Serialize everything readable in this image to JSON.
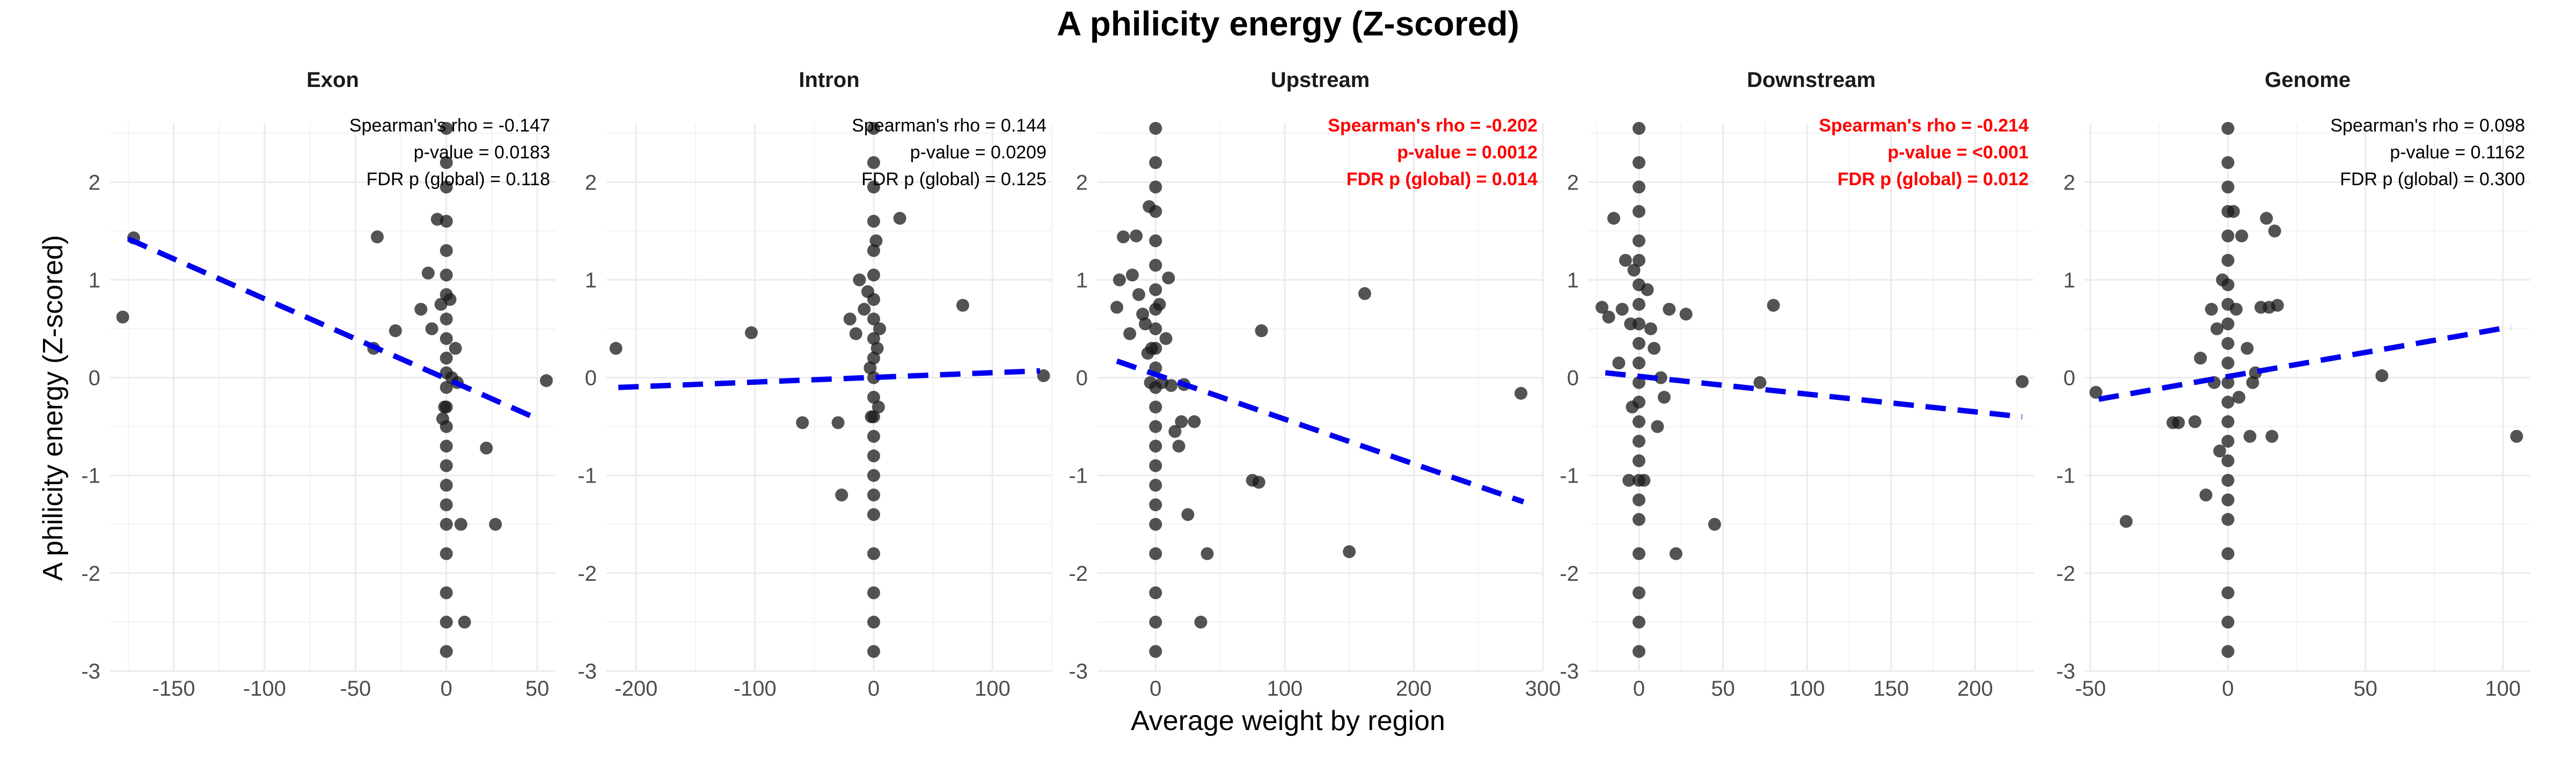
{
  "chart_data": {
    "type": "scatter",
    "title": "A philicity energy (Z-scored)",
    "xlabel": "Average weight by region",
    "ylabel": "A philicity energy (Z-scored)",
    "ylim": [
      -3,
      2.6
    ],
    "yticks": [
      -3,
      -2,
      -1,
      0,
      1,
      2
    ],
    "colors": {
      "points": "#1a1a1a",
      "fit_line": "#0000ee",
      "significant": "#ff0000",
      "normal": "#000000",
      "grid": "#ebebeb"
    },
    "panels": [
      {
        "name": "Exon",
        "xlim": [
          -185,
          60
        ],
        "xticks": [
          -150,
          -100,
          -50,
          0,
          50
        ],
        "annotation": [
          "Spearman's rho = -0.147",
          "p-value = 0.0183",
          "FDR p (global) = 0.118"
        ],
        "significant": false,
        "fit": [
          [
            -175,
            1.42
          ],
          [
            50,
            -0.42
          ]
        ],
        "points": [
          [
            -178,
            0.62
          ],
          [
            -172,
            1.43
          ],
          [
            -38,
            1.44
          ],
          [
            -40,
            0.3
          ],
          [
            -28,
            0.48
          ],
          [
            -14,
            0.7
          ],
          [
            -10,
            1.07
          ],
          [
            -8,
            0.5
          ],
          [
            -5,
            1.62
          ],
          [
            -3,
            0.75
          ],
          [
            -2,
            -0.42
          ],
          [
            -1,
            -0.3
          ],
          [
            0,
            2.55
          ],
          [
            0,
            2.2
          ],
          [
            0,
            1.95
          ],
          [
            0,
            1.6
          ],
          [
            0,
            1.3
          ],
          [
            0,
            1.05
          ],
          [
            0,
            0.85
          ],
          [
            0,
            0.6
          ],
          [
            0,
            0.4
          ],
          [
            0,
            0.2
          ],
          [
            0,
            0.05
          ],
          [
            0,
            -0.1
          ],
          [
            0,
            -0.3
          ],
          [
            0,
            -0.5
          ],
          [
            0,
            -0.7
          ],
          [
            0,
            -0.9
          ],
          [
            0,
            -1.1
          ],
          [
            0,
            -1.3
          ],
          [
            0,
            -1.5
          ],
          [
            0,
            -1.8
          ],
          [
            0,
            -2.2
          ],
          [
            0,
            -2.5
          ],
          [
            0,
            -2.8
          ],
          [
            2,
            0.8
          ],
          [
            3,
            0.0
          ],
          [
            5,
            0.3
          ],
          [
            6,
            -0.05
          ],
          [
            8,
            -1.5
          ],
          [
            10,
            -2.5
          ],
          [
            22,
            -0.72
          ],
          [
            27,
            -1.5
          ],
          [
            55,
            -0.03
          ]
        ]
      },
      {
        "name": "Intron",
        "xlim": [
          -225,
          150
        ],
        "xticks": [
          -200,
          -100,
          0,
          100
        ],
        "annotation": [
          "Spearman's rho = 0.144",
          "p-value = 0.0209",
          "FDR p (global) = 0.125"
        ],
        "significant": false,
        "fit": [
          [
            -215,
            -0.1
          ],
          [
            140,
            0.07
          ]
        ],
        "points": [
          [
            -217,
            0.3
          ],
          [
            -103,
            0.46
          ],
          [
            -60,
            -0.46
          ],
          [
            -30,
            -0.46
          ],
          [
            -27,
            -1.2
          ],
          [
            -20,
            0.6
          ],
          [
            -15,
            0.45
          ],
          [
            -12,
            1.0
          ],
          [
            -8,
            0.7
          ],
          [
            -5,
            0.88
          ],
          [
            -3,
            0.1
          ],
          [
            -2,
            -0.4
          ],
          [
            0,
            2.55
          ],
          [
            0,
            2.2
          ],
          [
            0,
            1.95
          ],
          [
            0,
            1.6
          ],
          [
            0,
            1.3
          ],
          [
            0,
            1.05
          ],
          [
            0,
            0.8
          ],
          [
            0,
            0.6
          ],
          [
            0,
            0.4
          ],
          [
            0,
            0.2
          ],
          [
            0,
            0.0
          ],
          [
            0,
            -0.2
          ],
          [
            0,
            -0.4
          ],
          [
            0,
            -0.6
          ],
          [
            0,
            -0.8
          ],
          [
            0,
            -1.0
          ],
          [
            0,
            -1.2
          ],
          [
            0,
            -1.4
          ],
          [
            0,
            -1.8
          ],
          [
            0,
            -2.2
          ],
          [
            0,
            -2.5
          ],
          [
            0,
            -2.8
          ],
          [
            2,
            1.4
          ],
          [
            3,
            0.3
          ],
          [
            4,
            -0.3
          ],
          [
            5,
            0.5
          ],
          [
            22,
            1.63
          ],
          [
            75,
            0.74
          ],
          [
            143,
            0.02
          ]
        ]
      },
      {
        "name": "Upstream",
        "xlim": [
          -45,
          300
        ],
        "xticks": [
          0,
          100,
          200,
          300
        ],
        "annotation": [
          "Spearman's rho = -0.202",
          "p-value = 0.0012",
          "FDR p (global) = 0.014"
        ],
        "significant": true,
        "fit": [
          [
            -30,
            0.17
          ],
          [
            285,
            -1.27
          ]
        ],
        "points": [
          [
            -30,
            0.72
          ],
          [
            -28,
            1.0
          ],
          [
            -25,
            1.44
          ],
          [
            -20,
            0.45
          ],
          [
            -18,
            1.05
          ],
          [
            -15,
            1.45
          ],
          [
            -13,
            0.85
          ],
          [
            -10,
            0.65
          ],
          [
            -8,
            0.55
          ],
          [
            -6,
            0.25
          ],
          [
            -5,
            1.75
          ],
          [
            -4,
            -0.05
          ],
          [
            -3,
            0.3
          ],
          [
            0,
            2.55
          ],
          [
            0,
            2.2
          ],
          [
            0,
            1.95
          ],
          [
            0,
            1.7
          ],
          [
            0,
            1.4
          ],
          [
            0,
            1.15
          ],
          [
            0,
            0.9
          ],
          [
            0,
            0.7
          ],
          [
            0,
            0.5
          ],
          [
            0,
            0.3
          ],
          [
            0,
            0.1
          ],
          [
            0,
            -0.1
          ],
          [
            0,
            -0.3
          ],
          [
            0,
            -0.5
          ],
          [
            0,
            -0.7
          ],
          [
            0,
            -0.9
          ],
          [
            0,
            -1.1
          ],
          [
            0,
            -1.3
          ],
          [
            0,
            -1.5
          ],
          [
            0,
            -1.8
          ],
          [
            0,
            -2.2
          ],
          [
            0,
            -2.5
          ],
          [
            0,
            -2.8
          ],
          [
            3,
            0.75
          ],
          [
            5,
            -0.05
          ],
          [
            8,
            0.4
          ],
          [
            10,
            1.02
          ],
          [
            12,
            -0.08
          ],
          [
            15,
            -0.55
          ],
          [
            18,
            -0.7
          ],
          [
            20,
            -0.45
          ],
          [
            22,
            -0.07
          ],
          [
            25,
            -1.4
          ],
          [
            30,
            -0.45
          ],
          [
            35,
            -2.5
          ],
          [
            40,
            -1.8
          ],
          [
            75,
            -1.05
          ],
          [
            80,
            -1.07
          ],
          [
            82,
            0.48
          ],
          [
            150,
            -1.78
          ],
          [
            162,
            0.86
          ],
          [
            283,
            -0.16
          ]
        ]
      },
      {
        "name": "Downstream",
        "xlim": [
          -30,
          235
        ],
        "xticks": [
          0,
          50,
          100,
          150,
          200
        ],
        "annotation": [
          "Spearman's rho = -0.214",
          "p-value = <0.001",
          "FDR p (global) = 0.012"
        ],
        "significant": true,
        "fit": [
          [
            -20,
            0.05
          ],
          [
            228,
            -0.4
          ]
        ],
        "points": [
          [
            -22,
            0.72
          ],
          [
            -18,
            0.62
          ],
          [
            -15,
            1.63
          ],
          [
            -12,
            0.15
          ],
          [
            -10,
            0.7
          ],
          [
            -8,
            1.2
          ],
          [
            -6,
            -1.05
          ],
          [
            -5,
            0.55
          ],
          [
            -4,
            -0.3
          ],
          [
            -3,
            1.1
          ],
          [
            0,
            2.55
          ],
          [
            0,
            2.2
          ],
          [
            0,
            1.95
          ],
          [
            0,
            1.7
          ],
          [
            0,
            1.4
          ],
          [
            0,
            1.2
          ],
          [
            0,
            0.95
          ],
          [
            0,
            0.75
          ],
          [
            0,
            0.55
          ],
          [
            0,
            0.35
          ],
          [
            0,
            0.15
          ],
          [
            0,
            -0.05
          ],
          [
            0,
            -0.25
          ],
          [
            0,
            -0.45
          ],
          [
            0,
            -0.65
          ],
          [
            0,
            -0.85
          ],
          [
            0,
            -1.05
          ],
          [
            0,
            -1.25
          ],
          [
            0,
            -1.45
          ],
          [
            0,
            -1.8
          ],
          [
            0,
            -2.2
          ],
          [
            0,
            -2.5
          ],
          [
            0,
            -2.8
          ],
          [
            3,
            -1.05
          ],
          [
            5,
            0.9
          ],
          [
            7,
            0.5
          ],
          [
            9,
            0.3
          ],
          [
            11,
            -0.5
          ],
          [
            13,
            0.0
          ],
          [
            15,
            -0.2
          ],
          [
            18,
            0.7
          ],
          [
            22,
            -1.8
          ],
          [
            28,
            0.65
          ],
          [
            45,
            -1.5
          ],
          [
            72,
            -0.05
          ],
          [
            80,
            0.74
          ],
          [
            228,
            -0.04
          ]
        ]
      },
      {
        "name": "Genome",
        "xlim": [
          -52,
          110
        ],
        "xticks": [
          -50,
          0,
          50,
          100
        ],
        "annotation": [
          "Spearman's rho = 0.098",
          "p-value = 0.1162",
          "FDR p (global) = 0.300"
        ],
        "significant": false,
        "fit": [
          [
            -47,
            -0.22
          ],
          [
            103,
            0.52
          ]
        ],
        "points": [
          [
            -48,
            -0.15
          ],
          [
            -37,
            -1.47
          ],
          [
            -20,
            -0.46
          ],
          [
            -18,
            -0.46
          ],
          [
            -12,
            -0.45
          ],
          [
            -10,
            0.2
          ],
          [
            -8,
            -1.2
          ],
          [
            -6,
            0.7
          ],
          [
            -5,
            -0.05
          ],
          [
            -4,
            0.5
          ],
          [
            -3,
            -0.75
          ],
          [
            -2,
            1.0
          ],
          [
            0,
            2.55
          ],
          [
            0,
            2.2
          ],
          [
            0,
            1.95
          ],
          [
            0,
            1.7
          ],
          [
            0,
            1.45
          ],
          [
            0,
            1.2
          ],
          [
            0,
            0.95
          ],
          [
            0,
            0.75
          ],
          [
            0,
            0.55
          ],
          [
            0,
            0.35
          ],
          [
            0,
            0.15
          ],
          [
            0,
            -0.05
          ],
          [
            0,
            -0.25
          ],
          [
            0,
            -0.45
          ],
          [
            0,
            -0.65
          ],
          [
            0,
            -0.85
          ],
          [
            0,
            -1.05
          ],
          [
            0,
            -1.25
          ],
          [
            0,
            -1.45
          ],
          [
            0,
            -1.8
          ],
          [
            0,
            -2.2
          ],
          [
            0,
            -2.5
          ],
          [
            0,
            -2.8
          ],
          [
            2,
            1.7
          ],
          [
            3,
            0.7
          ],
          [
            4,
            -0.2
          ],
          [
            5,
            1.45
          ],
          [
            7,
            0.3
          ],
          [
            8,
            -0.6
          ],
          [
            9,
            -0.05
          ],
          [
            10,
            0.05
          ],
          [
            12,
            0.72
          ],
          [
            14,
            1.63
          ],
          [
            15,
            0.72
          ],
          [
            16,
            -0.6
          ],
          [
            17,
            1.5
          ],
          [
            18,
            0.74
          ],
          [
            56,
            0.02
          ],
          [
            105,
            -0.6
          ]
        ]
      }
    ]
  }
}
